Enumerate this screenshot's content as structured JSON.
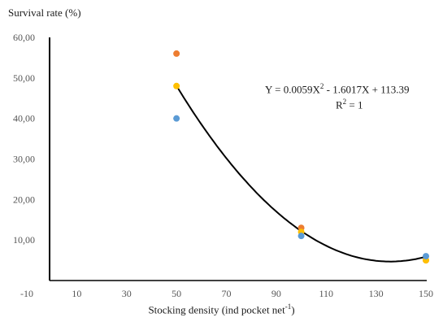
{
  "chart_data": {
    "type": "scatter",
    "ylabel": "Survival rate (%)",
    "xlabel": "Stocking density  (ind pocket net",
    "xlabel_sup": "-1",
    "xlabel_close": ")",
    "equation": {
      "lead": "Y = 0.0059X",
      "sup": "2",
      "tail": " - 1.6017X + 113.39",
      "r2_lead": "R",
      "r2_sup": "2",
      "r2_tail": " = 1"
    },
    "x_ticks": [
      "-10",
      "10",
      "30",
      "50",
      "70",
      "90",
      "110",
      "130",
      "150"
    ],
    "y_ticks": [
      "10,00",
      "20,00",
      "30,00",
      "40,00",
      "50,00",
      "60,00"
    ],
    "xlim": [
      -10,
      150
    ],
    "ylim": [
      0,
      60
    ],
    "series": [
      {
        "color": "#ED7D31",
        "points": [
          [
            50,
            56
          ],
          [
            100,
            13
          ],
          [
            150,
            5
          ]
        ]
      },
      {
        "color": "#FFC000",
        "points": [
          [
            50,
            48
          ],
          [
            100,
            12
          ],
          [
            150,
            5
          ]
        ]
      },
      {
        "color": "#5B9BD5",
        "points": [
          [
            50,
            40
          ],
          [
            100,
            11
          ],
          [
            150,
            6
          ]
        ]
      }
    ],
    "trendline": {
      "color": "#000000",
      "a": 0.0059,
      "b": -1.6017,
      "c": 113.39,
      "x_range": [
        50,
        150
      ]
    },
    "grid": false,
    "legend": "none"
  }
}
